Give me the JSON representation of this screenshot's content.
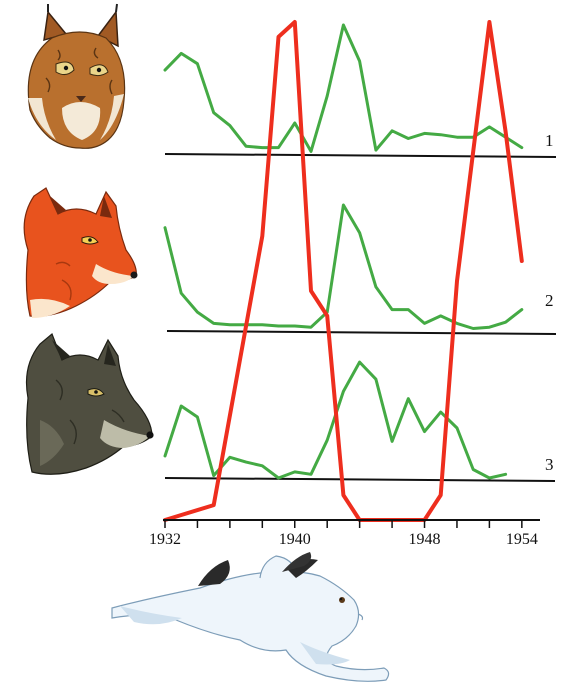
{
  "chart_data": {
    "type": "line",
    "x_range": [
      1932,
      1955
    ],
    "x_tick_labels": [
      "1932",
      "1940",
      "1948",
      "1954"
    ],
    "x_tick_label_values": [
      1932,
      1940,
      1948,
      1954
    ],
    "x_minor_ticks": [
      1932,
      1934,
      1936,
      1938,
      1940,
      1942,
      1944,
      1946,
      1948,
      1950,
      1952,
      1954
    ],
    "grid": false,
    "legend": "none",
    "rows": [
      {
        "label": "1",
        "animal": "lynx",
        "icon": "lynx-icon",
        "color": "#44aa44",
        "values": [
          [
            1932,
            0.65
          ],
          [
            1933,
            0.78
          ],
          [
            1934,
            0.7
          ],
          [
            1935,
            0.32
          ],
          [
            1936,
            0.22
          ],
          [
            1937,
            0.06
          ],
          [
            1938,
            0.05
          ],
          [
            1939,
            0.05
          ],
          [
            1940,
            0.24
          ],
          [
            1941,
            0.02
          ],
          [
            1942,
            0.45
          ],
          [
            1943,
            1.0
          ],
          [
            1944,
            0.72
          ],
          [
            1945,
            0.03
          ],
          [
            1946,
            0.18
          ],
          [
            1947,
            0.12
          ],
          [
            1948,
            0.16
          ],
          [
            1949,
            0.15
          ],
          [
            1950,
            0.13
          ],
          [
            1951,
            0.13
          ],
          [
            1952,
            0.21
          ],
          [
            1953,
            0.13
          ],
          [
            1954,
            0.05
          ]
        ]
      },
      {
        "label": "2",
        "animal": "fox",
        "icon": "fox-icon",
        "color": "#44aa44",
        "values": [
          [
            1932,
            0.82
          ],
          [
            1933,
            0.3
          ],
          [
            1934,
            0.15
          ],
          [
            1935,
            0.06
          ],
          [
            1936,
            0.05
          ],
          [
            1937,
            0.05
          ],
          [
            1938,
            0.05
          ],
          [
            1939,
            0.04
          ],
          [
            1940,
            0.04
          ],
          [
            1941,
            0.03
          ],
          [
            1942,
            0.15
          ],
          [
            1943,
            1.0
          ],
          [
            1944,
            0.78
          ],
          [
            1945,
            0.35
          ],
          [
            1946,
            0.17
          ],
          [
            1947,
            0.17
          ],
          [
            1948,
            0.06
          ],
          [
            1949,
            0.12
          ],
          [
            1950,
            0.06
          ],
          [
            1951,
            0.02
          ],
          [
            1952,
            0.03
          ],
          [
            1953,
            0.07
          ],
          [
            1954,
            0.17
          ]
        ]
      },
      {
        "label": "3",
        "animal": "wolf",
        "icon": "wolf-icon",
        "color": "#44aa44",
        "values": [
          [
            1932,
            0.18
          ],
          [
            1933,
            0.59
          ],
          [
            1934,
            0.5
          ],
          [
            1935,
            0.02
          ],
          [
            1936,
            0.17
          ],
          [
            1937,
            0.13
          ],
          [
            1938,
            0.1
          ],
          [
            1939,
            0.0
          ],
          [
            1940,
            0.05
          ],
          [
            1941,
            0.03
          ],
          [
            1942,
            0.31
          ],
          [
            1943,
            0.71
          ],
          [
            1944,
            0.95
          ],
          [
            1945,
            0.81
          ],
          [
            1946,
            0.3
          ],
          [
            1947,
            0.65
          ],
          [
            1948,
            0.38
          ],
          [
            1949,
            0.54
          ],
          [
            1950,
            0.41
          ],
          [
            1951,
            0.07
          ],
          [
            1952,
            0.0
          ],
          [
            1953,
            0.03
          ]
        ]
      }
    ],
    "hare": {
      "animal": "hare",
      "icon": "hare-icon",
      "color": "#ee2e1e",
      "values": [
        [
          1932,
          0.0
        ],
        [
          1935,
          0.03
        ],
        [
          1938,
          0.57
        ],
        [
          1939,
          0.97
        ],
        [
          1940,
          1.0
        ],
        [
          1941,
          0.46
        ],
        [
          1942,
          0.41
        ],
        [
          1943,
          0.05
        ],
        [
          1944,
          0.0
        ],
        [
          1948,
          0.0
        ],
        [
          1949,
          0.05
        ],
        [
          1950,
          0.48
        ],
        [
          1952,
          1.0
        ],
        [
          1953,
          0.78
        ],
        [
          1954,
          0.52
        ]
      ]
    }
  }
}
